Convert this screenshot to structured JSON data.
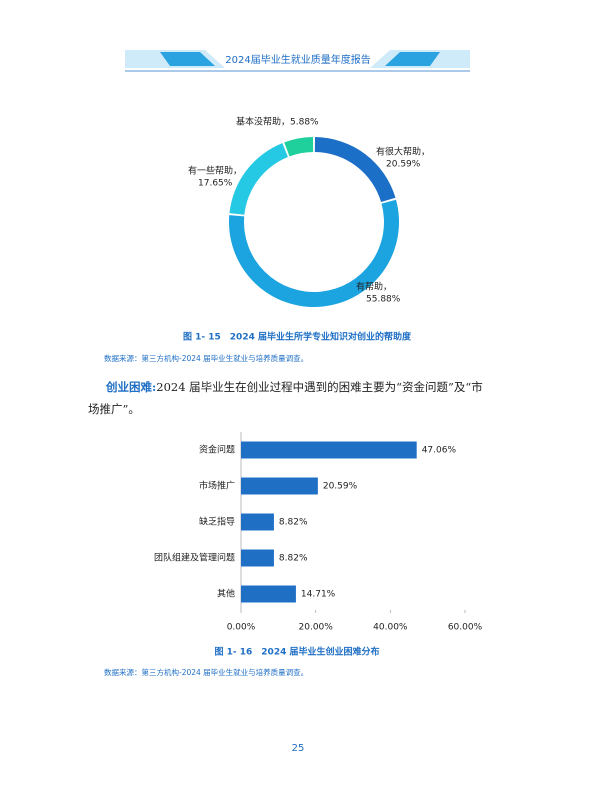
{
  "header": {
    "title": "2024届毕业生就业质量年度报告"
  },
  "chart_data": [
    {
      "type": "donut",
      "categories": [
        "有很大帮助，",
        "有帮助，",
        "有一些帮助，",
        "基本没帮助，"
      ],
      "values": [
        20.59,
        55.88,
        17.65,
        5.88
      ],
      "value_labels": [
        "20.59%",
        "55.88%",
        "17.65%",
        "5.88%"
      ],
      "colors": [
        "#1b6fc6",
        "#1ba4e0",
        "#26c9e3",
        "#20d09c"
      ]
    },
    {
      "type": "barh",
      "categories": [
        "资金问题",
        "市场推广",
        "缺乏指导",
        "团队组建及管理问题",
        "其他"
      ],
      "values": [
        47.06,
        20.59,
        8.82,
        8.82,
        14.71
      ],
      "value_labels": [
        "47.06%",
        "20.59%",
        "8.82%",
        "8.82%",
        "14.71%"
      ],
      "color": "#1f6fc5",
      "xlim": [
        0,
        60
      ],
      "xticks": [
        {
          "value": 0,
          "label": "0.00%"
        },
        {
          "value": 20,
          "label": "20.00%"
        },
        {
          "value": 40,
          "label": "40.00%"
        },
        {
          "value": 60,
          "label": "60.00%"
        }
      ]
    }
  ],
  "captions": [
    "图 1- 15　2024 届毕业生所学专业知识对创业的帮助度",
    "图 1- 16　2024 届毕业生创业困难分布"
  ],
  "sources": [
    "数据来源：第三方机构-2024 届毕业生就业与培养质量调查。",
    "数据来源：第三方机构-2024 届毕业生就业与培养质量调查。"
  ],
  "paragraph": {
    "lead": "创业困难:",
    "text": "2024 届毕业生在创业过程中遇到的困难主要为“资金问题”及“市场推广”。"
  },
  "page_number": "25"
}
